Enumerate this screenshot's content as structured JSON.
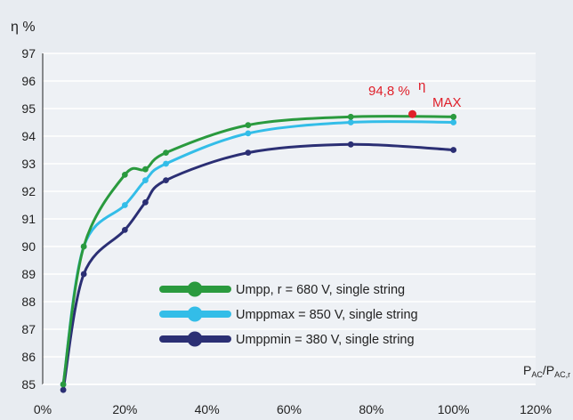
{
  "chart_data": {
    "type": "line",
    "ylabel": "η %",
    "xlabel": "PAC/PAC,r",
    "xlim": [
      0,
      120
    ],
    "ylim": [
      85,
      97
    ],
    "xticks": [
      0,
      20,
      40,
      60,
      80,
      100,
      120
    ],
    "xtick_labels": [
      "0%",
      "20%",
      "40%",
      "60%",
      "80%",
      "100%",
      "120%"
    ],
    "yticks": [
      85,
      86,
      87,
      88,
      89,
      90,
      91,
      92,
      93,
      94,
      95,
      96,
      97
    ],
    "grid": "horizontal",
    "legend_position": "lower-right",
    "series": [
      {
        "name": "Umpp, r = 680 V, single string",
        "color": "#2a9a3e",
        "x": [
          5,
          10,
          20,
          25,
          30,
          50,
          75,
          100
        ],
        "y": [
          85.0,
          90.0,
          92.6,
          92.8,
          93.4,
          94.4,
          94.7,
          94.7
        ]
      },
      {
        "name": "Umppmax = 850 V, single string",
        "color": "#33bde8",
        "x": [
          5,
          10,
          20,
          25,
          30,
          50,
          75,
          100
        ],
        "y": [
          85.0,
          90.0,
          91.5,
          92.4,
          93.0,
          94.1,
          94.5,
          94.5
        ]
      },
      {
        "name": "Umppmin = 380 V, single string",
        "color": "#2b2f74",
        "x": [
          5,
          10,
          20,
          25,
          30,
          50,
          75,
          100
        ],
        "y": [
          84.8,
          89.0,
          90.6,
          91.6,
          92.4,
          93.4,
          93.7,
          93.5
        ]
      }
    ],
    "annotation": {
      "text_value": "94,8 %",
      "text_symbol": "η",
      "text_subscript": "MAX",
      "point": {
        "x": 90,
        "y": 94.8
      },
      "color": "#e0202a"
    }
  }
}
